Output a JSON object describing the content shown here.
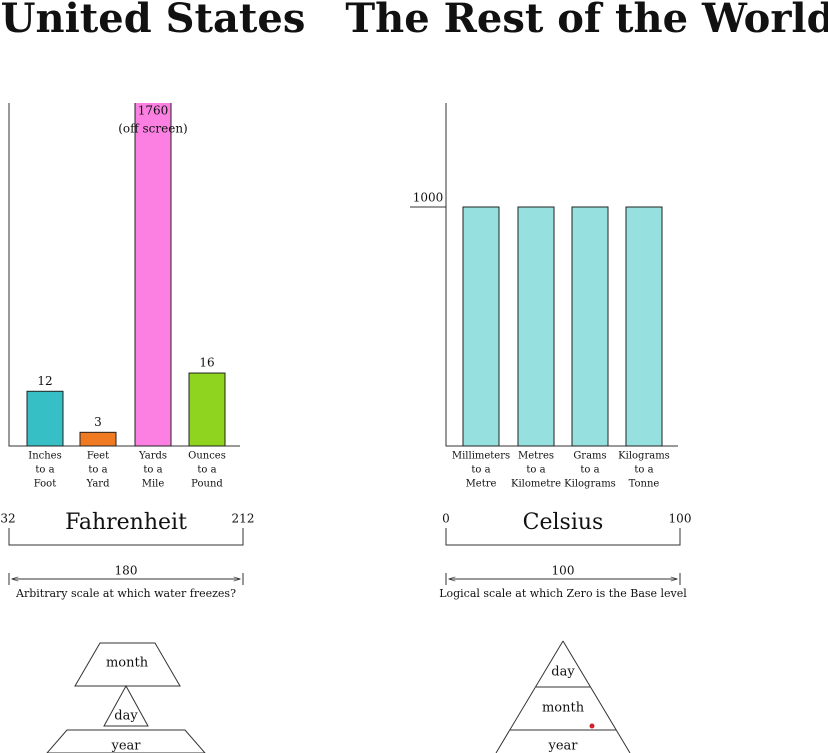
{
  "us": {
    "title": "United States",
    "bars": {
      "categories": [
        [
          "Inches",
          "to a",
          "Foot"
        ],
        [
          "Feet",
          "to a",
          "Yard"
        ],
        [
          "Yards",
          "to a",
          "Mile"
        ],
        [
          "Ounces",
          "to a",
          "Pound"
        ]
      ],
      "values": [
        12,
        3,
        1760,
        16
      ],
      "value_labels": [
        [
          "12"
        ],
        [
          "3"
        ],
        [
          "1760",
          "(off screen)"
        ],
        [
          "16"
        ]
      ],
      "colors": [
        "#36bfc4",
        "#f07a22",
        "#fb80e2",
        "#8fd41f"
      ]
    },
    "temperature": {
      "name": "Fahrenheit",
      "low": 32,
      "high": 212,
      "span": 180,
      "caption": "Arbitrary scale at which water freezes?"
    },
    "date": {
      "top": "month",
      "middle": "day",
      "bottom": "year"
    }
  },
  "world": {
    "title": "The Rest of the World",
    "bars": {
      "categories": [
        [
          "Millimeters",
          "to a",
          "Metre"
        ],
        [
          "Metres",
          "to a",
          "Kilometre"
        ],
        [
          "Grams",
          "to a",
          "Kilograms"
        ],
        [
          "Kilograms",
          "to a",
          "Tonne"
        ]
      ],
      "values": [
        1000,
        1000,
        1000,
        1000
      ],
      "colors": [
        "#96e0e0",
        "#96e0e0",
        "#96e0e0",
        "#96e0e0"
      ],
      "yticks": [
        1000
      ]
    },
    "temperature": {
      "name": "Celsius",
      "low": 0,
      "high": 100,
      "span": 100,
      "caption": "Logical scale at which Zero is the Base level"
    },
    "date": {
      "top": "day",
      "middle": "month",
      "bottom": "year"
    }
  }
}
